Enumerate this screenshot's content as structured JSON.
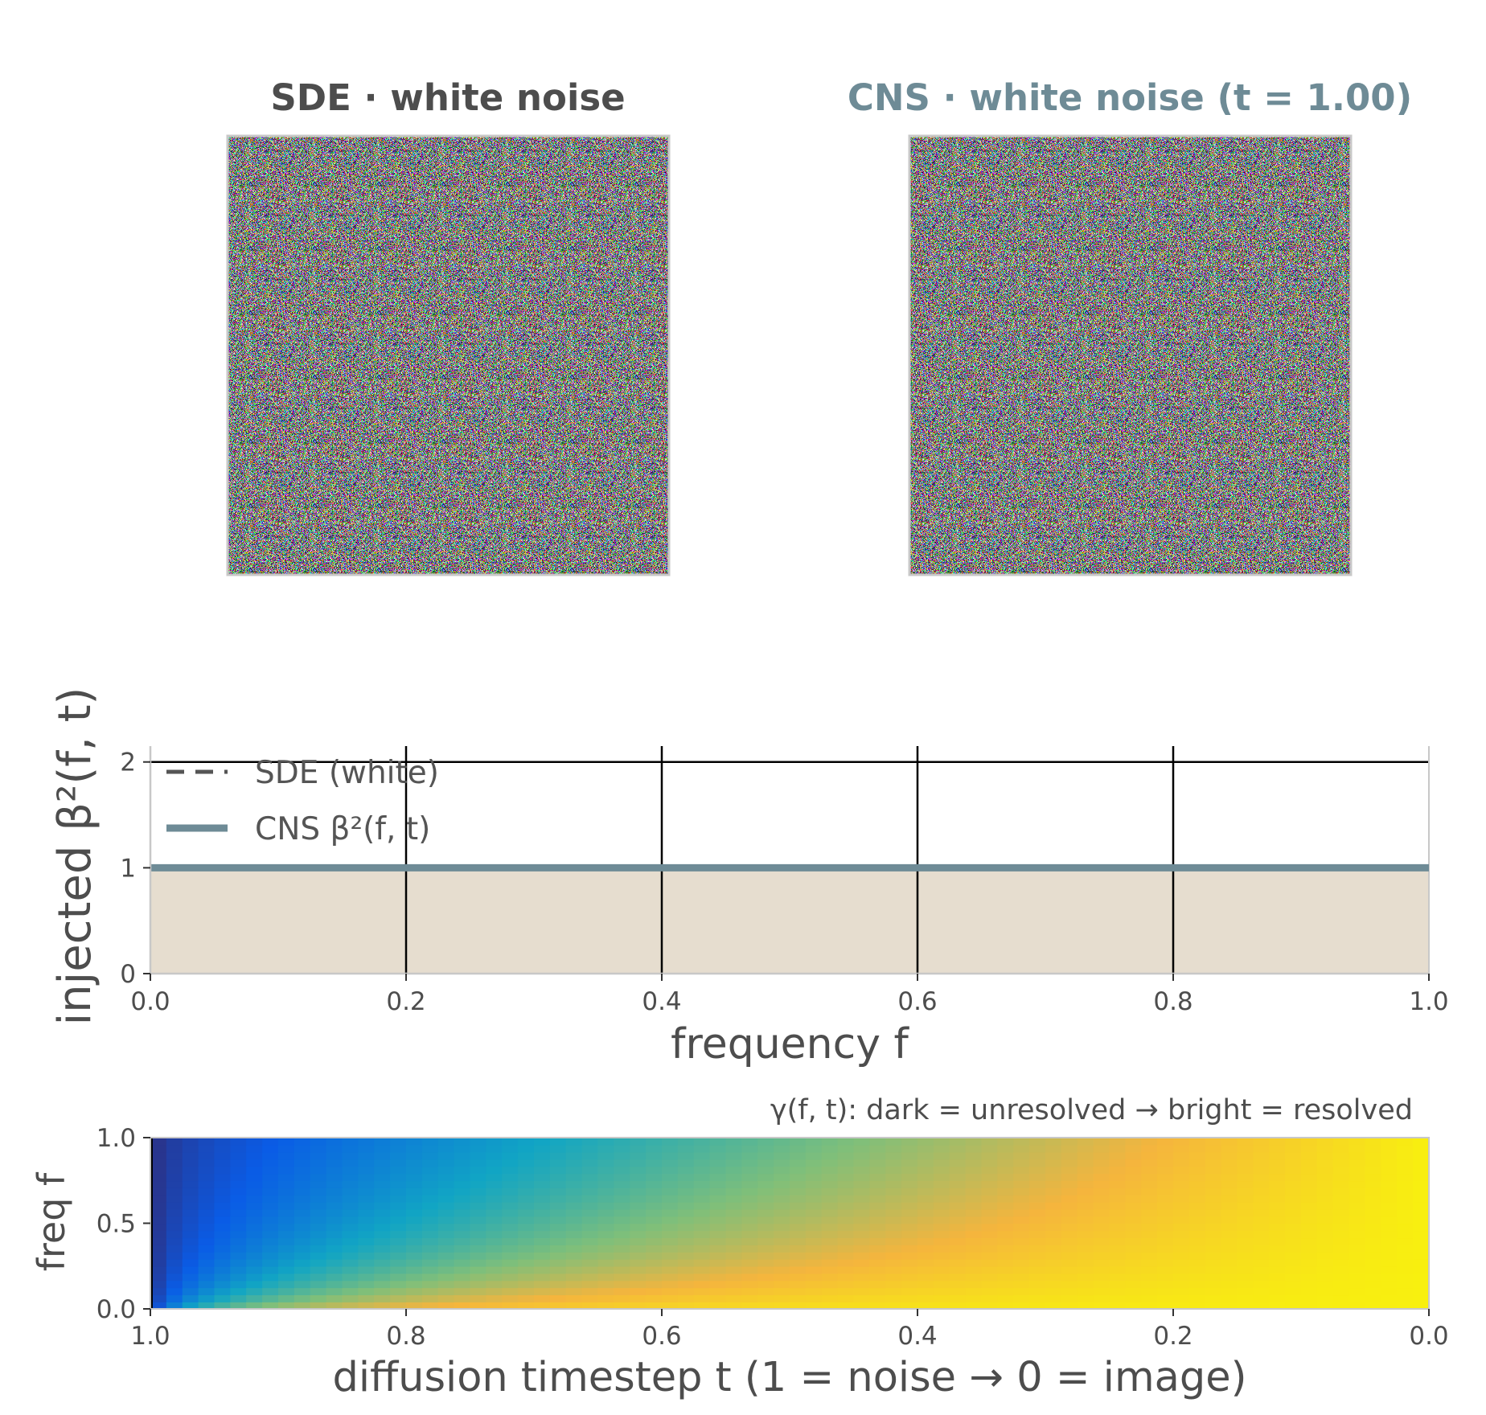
{
  "colors": {
    "text_dark": "#4d4d4d",
    "cns_accent": "#6e8b96",
    "fill_beige": "#e6ddcf",
    "grid": "#000000",
    "frame": "#c8c8c8"
  },
  "panels": {
    "left_title": "SDE  ·  white noise",
    "right_title": "CNS  ·  white noise   (t = 1.00)"
  },
  "chart_data": [
    {
      "type": "line",
      "name": "injected-noise-spectrum",
      "title": "",
      "xlabel": "frequency  f",
      "ylabel": "injected  β²(f, t)",
      "xlim": [
        0.0,
        1.0
      ],
      "ylim": [
        0,
        2.15
      ],
      "x_ticks": [
        "0.0",
        "0.2",
        "0.4",
        "0.6",
        "0.8",
        "1.0"
      ],
      "y_ticks": [
        "0",
        "1",
        "2"
      ],
      "grid": true,
      "legend_position": "top-left",
      "series": [
        {
          "name": "SDE (white)",
          "style": "dashed",
          "color": "#555555",
          "x": [
            0.0,
            1.0
          ],
          "y": [
            1.0,
            1.0
          ]
        },
        {
          "name": "CNS  β²(f, t)",
          "style": "solid",
          "color": "#6e8b96",
          "x": [
            0.0,
            1.0
          ],
          "y": [
            1.0,
            1.0
          ],
          "fill_below": true
        }
      ]
    },
    {
      "type": "heatmap",
      "name": "gamma-resolution-map",
      "title": "γ(f, t):  dark = unresolved  →  bright = resolved",
      "xlabel": "diffusion timestep  t    (1 = noise  →  0 = image)",
      "ylabel": "freq  f",
      "xlim": [
        1.0,
        0.0
      ],
      "ylim": [
        0.0,
        1.0
      ],
      "x_ticks": [
        "1.0",
        "0.8",
        "0.6",
        "0.4",
        "0.2",
        "0.0"
      ],
      "y_ticks": [
        "0.0",
        "0.5",
        "1.0"
      ],
      "colormap": [
        "#312a75",
        "#0a5ce6",
        "#11a5c4",
        "#7fbf7a",
        "#f5b53d",
        "#f8f00f"
      ]
    }
  ]
}
